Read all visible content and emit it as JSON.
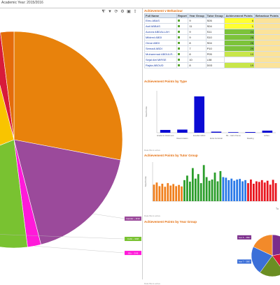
{
  "header": {
    "academic_year": "Academic Year: 2015/2016"
  },
  "toolbar": {
    "icons": [
      "filter-icon",
      "funnel-icon",
      "refresh-icon",
      "settings-icon",
      "print-icon",
      "export-icon"
    ]
  },
  "pie_main": {
    "slices": [
      {
        "label": "",
        "value": 28,
        "color": "#e8820c"
      },
      {
        "label": "Gender – 3/10",
        "value": 18,
        "color": "#9b4a9b"
      },
      {
        "label": "SEx – 3/49",
        "value": 2,
        "color": "#ff1ad9"
      },
      {
        "label": "Cubit – 3/48",
        "value": 21,
        "color": "#79c231"
      },
      {
        "label": "",
        "value": 27,
        "color": "#f9c400"
      },
      {
        "label": "",
        "value": 2,
        "color": "#d81b3a"
      },
      {
        "label": "",
        "value": 2,
        "color": "#e46c0a"
      }
    ]
  },
  "achievements_table": {
    "title": "Achievement v Behaviour",
    "columns": [
      "Full Name",
      "Report",
      "Year Group",
      "Tutor Group",
      "Achievement Points",
      "Behaviour Points"
    ],
    "rows": [
      {
        "name": "Ebru ABAS",
        "year": "9",
        "tutor": "S05",
        "ach": "6",
        "beh": ""
      },
      {
        "name": "Asif ABBAS",
        "year": "11",
        "tutor": "S04",
        "ach": "1",
        "beh": ""
      },
      {
        "name": "Aurora ABDALLAH",
        "year": "9",
        "tutor": "S11",
        "ach": "24",
        "beh": ""
      },
      {
        "name": "Mildred ABDI",
        "year": "9",
        "tutor": "S10",
        "ach": "26",
        "beh": ""
      },
      {
        "name": "Omar ABDI",
        "year": "8",
        "tutor": "S04",
        "ach": "26",
        "beh": ""
      },
      {
        "name": "Semadi ABDI",
        "year": "7",
        "tutor": "P10",
        "ach": "29",
        "beh": ""
      },
      {
        "name": "Muhammad ABDULR...",
        "year": "8",
        "tutor": "P05",
        "ach": "10",
        "beh": ""
      },
      {
        "name": "Sejal Abt MIRSE",
        "year": "10",
        "tutor": "L08",
        "ach": "",
        "beh": ""
      },
      {
        "name": "Rajda ABOUD",
        "year": "8",
        "tutor": "D03",
        "ach": "19",
        "beh": ""
      }
    ]
  },
  "chart_by_type": {
    "title": "Achievement Points by Type",
    "note": "Data filters active",
    "ylabel": "Total Points",
    "categories": [
      "Academic Attainment",
      "Determination",
      "Excellent Effort",
      "Extra Curricular",
      "PE – Hall of Fame",
      "Reading",
      "Achiev..."
    ],
    "values": [
      40,
      45,
      520,
      15,
      8,
      10,
      30
    ],
    "ylim": [
      0,
      600
    ],
    "color": "#0a0ad4"
  },
  "chart_by_tutor": {
    "title": "Achievement Points by Tutor Group",
    "note": "Data filters active",
    "ylabel": "Total Points",
    "xlabel": "Tu",
    "groups": [
      {
        "color": "#f07f1c",
        "values": [
          55,
          62,
          50,
          58,
          48,
          60,
          52,
          57,
          50,
          54,
          49
        ]
      },
      {
        "color": "#2a9d2a",
        "values": [
          70,
          85,
          65,
          110,
          75,
          90,
          60,
          120,
          80,
          68,
          72,
          95,
          66,
          100
        ]
      },
      {
        "color": "#2979e8",
        "values": [
          80,
          78,
          70,
          75,
          68,
          72,
          74,
          66,
          70
        ]
      },
      {
        "color": "#e8131c",
        "values": [
          60,
          72,
          58,
          66,
          64,
          70,
          62,
          68,
          55,
          71,
          60
        ]
      }
    ],
    "ylim": [
      0,
      130
    ]
  },
  "chart_by_year": {
    "title": "Achievement Points by Year Group",
    "note": "Data filters active",
    "slices": [
      {
        "label": "Year 8 – 3897",
        "value": 22,
        "color": "#7b2d8b"
      },
      {
        "label": "",
        "value": 18,
        "color": "#d81b3a"
      },
      {
        "label": "",
        "value": 20,
        "color": "#6b8e23"
      },
      {
        "label": "Year 7 – 3897",
        "value": 22,
        "color": "#3b6fd8"
      },
      {
        "label": "",
        "value": 18,
        "color": "#f28a2a"
      }
    ]
  }
}
